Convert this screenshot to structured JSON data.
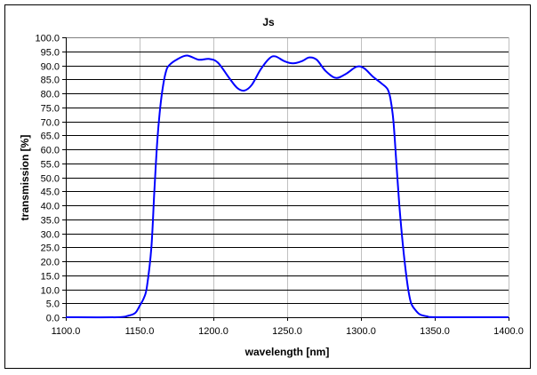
{
  "chart_data": {
    "type": "line",
    "title": "Js",
    "xlabel": "wavelength [nm]",
    "ylabel": "transmission [%]",
    "xlim": [
      1100,
      1400
    ],
    "ylim": [
      0,
      100
    ],
    "xticks": [
      1100,
      1150,
      1200,
      1250,
      1300,
      1350,
      1400
    ],
    "xtick_labels": [
      "1100.0",
      "1150.0",
      "1200.0",
      "1250.0",
      "1300.0",
      "1350.0",
      "1400.0"
    ],
    "yticks": [
      0,
      5,
      10,
      15,
      20,
      25,
      30,
      35,
      40,
      45,
      50,
      55,
      60,
      65,
      70,
      75,
      80,
      85,
      90,
      95,
      100
    ],
    "ytick_labels": [
      "0.0",
      "5.0",
      "10.0",
      "15.0",
      "20.0",
      "25.0",
      "30.0",
      "35.0",
      "40.0",
      "45.0",
      "50.0",
      "55.0",
      "60.0",
      "65.0",
      "70.0",
      "75.0",
      "80.0",
      "85.0",
      "90.0",
      "95.0",
      "100.0"
    ],
    "grid": true,
    "legend": "none",
    "series": [
      {
        "name": "Js",
        "color": "#0000ff",
        "x": [
          1100,
          1135,
          1142,
          1147,
          1150,
          1153,
          1155,
          1158,
          1160,
          1162,
          1164,
          1166,
          1168,
          1170,
          1175,
          1182,
          1190,
          1197,
          1203,
          1210,
          1216,
          1221,
          1226,
          1232,
          1238,
          1242,
          1248,
          1254,
          1260,
          1265,
          1270,
          1276,
          1283,
          1290,
          1297,
          1302,
          1308,
          1314,
          1318,
          1320,
          1322,
          1324,
          1326,
          1328,
          1330,
          1332,
          1334,
          1337,
          1340,
          1345,
          1352,
          1400
        ],
        "y": [
          0,
          0,
          0.5,
          1.5,
          4,
          7,
          11,
          25,
          45,
          63,
          75,
          83,
          88,
          90,
          92,
          93.5,
          92,
          92.3,
          91,
          86,
          82,
          81,
          83,
          88.5,
          92.5,
          93.2,
          91.5,
          90.7,
          91.5,
          92.8,
          92,
          88,
          85.5,
          87,
          89.5,
          89,
          86,
          83.5,
          81.5,
          78,
          70,
          55,
          40,
          28,
          18,
          10,
          5,
          2.5,
          1,
          0.3,
          0,
          0
        ]
      }
    ]
  }
}
